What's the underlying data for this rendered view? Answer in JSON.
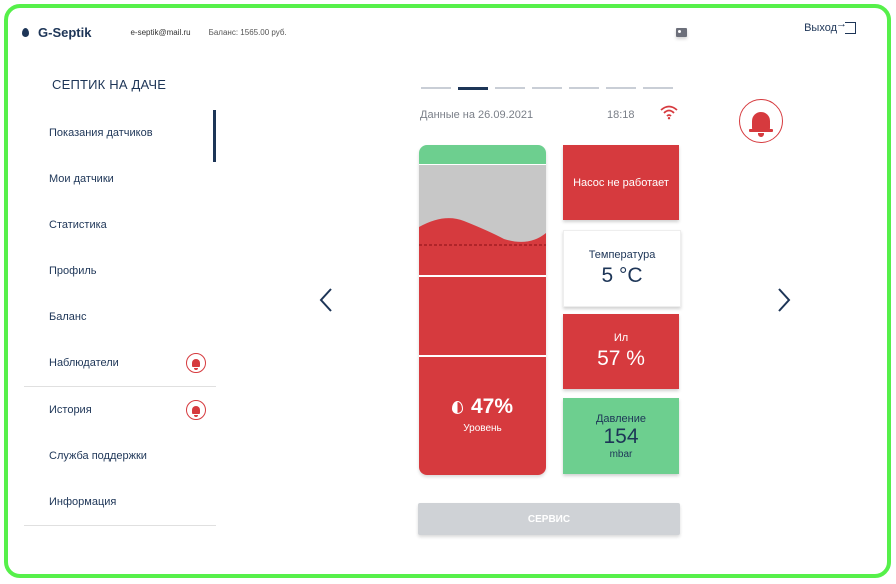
{
  "header": {
    "app_name": "G-Septik",
    "email": "e-septik@mail.ru",
    "balance": "Баланс: 1565.00 руб.",
    "logout_label": "Выход"
  },
  "sidebar": {
    "title": "СЕПТИК НА ДАЧЕ",
    "items": [
      {
        "label": "Показания датчиков"
      },
      {
        "label": "Мои датчики"
      },
      {
        "label": "Статистика"
      },
      {
        "label": "Профиль"
      },
      {
        "label": "Баланс"
      },
      {
        "label": "Наблюдатели"
      },
      {
        "label": "История"
      },
      {
        "label": "Служба поддержки"
      },
      {
        "label": "Информация"
      }
    ]
  },
  "main": {
    "pager": {
      "total": 7,
      "active_index": 1
    },
    "date_label": "Данные на 26.09.2021",
    "time": "18:18",
    "tank": {
      "level_value": "47%",
      "level_label": "Уровень",
      "level_fraction": 0.47
    },
    "cards": {
      "pump": {
        "title": "Насос не работает"
      },
      "temperature": {
        "title": "Температура",
        "value": "5 °С"
      },
      "sludge": {
        "title": "Ил",
        "value": "57 %"
      },
      "pressure": {
        "title": "Давление",
        "value": "154",
        "unit": "mbar"
      }
    },
    "service_label": "СЕРВИС"
  },
  "colors": {
    "primary": "#1d3557",
    "alarm_red": "#d63a3e",
    "ok_green": "#6dcf8f",
    "disabled_gray": "#cfd2d6",
    "frame_green": "#56f04a"
  },
  "icons": {
    "logo": "drop-icon",
    "email": "contact-card-icon",
    "logout": "logout-icon",
    "wifi": "wifi-icon",
    "alarm": "bell-icon",
    "prev": "chevron-left-icon",
    "next": "chevron-right-icon"
  }
}
